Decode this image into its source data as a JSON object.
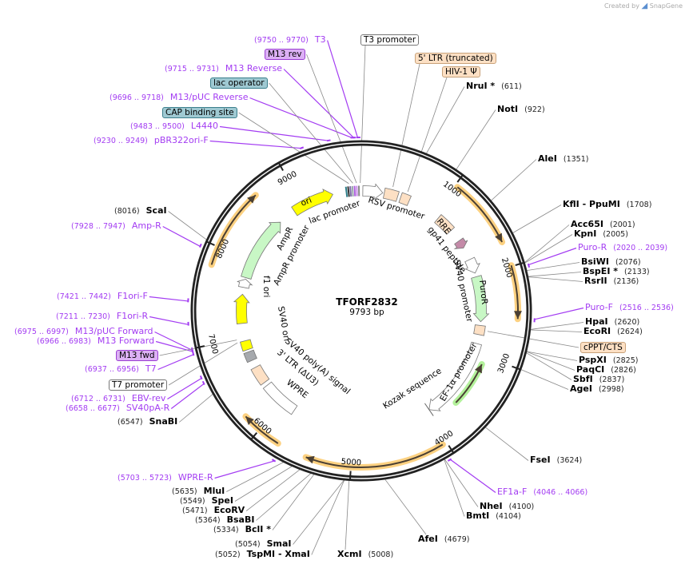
{
  "watermark": {
    "prefix": "Created by",
    "brand": "SnapGene"
  },
  "plasmid": {
    "name": "TFORF2832",
    "size_label": "9793 bp",
    "length": 9793
  },
  "ticks": [
    "1000",
    "2000",
    "3000",
    "4000",
    "5000",
    "6000",
    "7000",
    "8000",
    "9000"
  ],
  "sites": [
    {
      "name": "NruI *",
      "pos": 611
    },
    {
      "name": "NotI",
      "pos": 922
    },
    {
      "name": "AleI",
      "pos": 1351
    },
    {
      "name": "KflI  - PpuMI",
      "pos": 1708
    },
    {
      "name": "Acc65I",
      "pos": 2001
    },
    {
      "name": "KpnI",
      "pos": 2005
    },
    {
      "name": "BsiWI",
      "pos": 2076
    },
    {
      "name": "BspEI *",
      "pos": 2133
    },
    {
      "name": "RsrII",
      "pos": 2136
    },
    {
      "name": "HpaI",
      "pos": 2620
    },
    {
      "name": "EcoRI",
      "pos": 2624
    },
    {
      "name": "PspXI",
      "pos": 2825
    },
    {
      "name": "PaqCI",
      "pos": 2826
    },
    {
      "name": "SbfI",
      "pos": 2837
    },
    {
      "name": "AgeI",
      "pos": 2998
    },
    {
      "name": "FseI",
      "pos": 3624
    },
    {
      "name": "NheI",
      "pos": 4100
    },
    {
      "name": "BmtI",
      "pos": 4104
    },
    {
      "name": "AfeI",
      "pos": 4679
    },
    {
      "name": "XcmI",
      "pos": 5008
    },
    {
      "name": "SmaI",
      "pos": 5054
    },
    {
      "name": "TspMI  - XmaI",
      "pos": 5052
    },
    {
      "name": "BclI *",
      "pos": 5334
    },
    {
      "name": "BsaBI",
      "pos": 5364
    },
    {
      "name": "EcoRV",
      "pos": 5471
    },
    {
      "name": "SpeI",
      "pos": 5549
    },
    {
      "name": "MluI",
      "pos": 5635
    },
    {
      "name": "SnaBI",
      "pos": 6547
    },
    {
      "name": "ScaI",
      "pos": 8016
    }
  ],
  "primers": [
    {
      "name": "Puro-R",
      "range": "2020 .. 2039"
    },
    {
      "name": "Puro-F",
      "range": "2516 .. 2536"
    },
    {
      "name": "EF1a-F",
      "range": "4046 .. 4066"
    },
    {
      "name": "WPRE-R",
      "range": "5703 .. 5723"
    },
    {
      "name": "SV40pA-R",
      "range": "6658 .. 6677"
    },
    {
      "name": "EBV-rev",
      "range": "6712 .. 6731"
    },
    {
      "name": "T7",
      "range": "6937 .. 6956"
    },
    {
      "name": "M13 Forward",
      "range": "6966 .. 6983"
    },
    {
      "name": "M13/pUC Forward",
      "range": "6975 .. 6997"
    },
    {
      "name": "F1ori-R",
      "range": "7211 .. 7230"
    },
    {
      "name": "F1ori-F",
      "range": "7421 .. 7442"
    },
    {
      "name": "Amp-R",
      "range": "7928 .. 7947"
    },
    {
      "name": "pBR322ori-F",
      "range": "9230 .. 9249"
    },
    {
      "name": "L4440",
      "range": "9483 .. 9500"
    },
    {
      "name": "M13/pUC Reverse",
      "range": "9696 .. 9718"
    },
    {
      "name": "M13 Reverse",
      "range": "9715 .. 9731"
    },
    {
      "name": "T3",
      "range": "9750 .. 9770"
    }
  ],
  "boxed_features": [
    {
      "label": "T3 promoter",
      "bp": 9780
    },
    {
      "label": "M13 rev",
      "bp": 9735
    },
    {
      "label": "lac operator",
      "bp": 9690
    },
    {
      "label": "CAP binding site",
      "bp": 9640
    },
    {
      "label": "5' LTR (truncated)",
      "bp": 390
    },
    {
      "label": "HIV-1 Ψ",
      "bp": 580
    },
    {
      "label": "cPPT/CTS",
      "bp": 2700
    },
    {
      "label": "M13 fwd",
      "bp": 6985
    },
    {
      "label": "T7 promoter",
      "bp": 6950
    }
  ],
  "features": [
    {
      "label": "RSV promoter",
      "start": 20,
      "end": 280,
      "fill": "#ffffff",
      "dir": 1
    },
    {
      "label": "",
      "start": 300,
      "end": 480,
      "fill": "#fde0c4",
      "dir": 0
    },
    {
      "label": "",
      "start": 520,
      "end": 640,
      "fill": "#fde0c4",
      "dir": 0
    },
    {
      "label": "RRE",
      "start": 1080,
      "end": 1310,
      "fill": "#fde0c4",
      "dir": 0
    },
    {
      "label": "gp41 peptide",
      "start": 1480,
      "end": 1590,
      "fill": "#c48aa8",
      "dir": 1
    },
    {
      "label": "SV40 promoter",
      "start": 1760,
      "end": 1950,
      "fill": "#ffffff",
      "dir": 1
    },
    {
      "label": "PuroR",
      "start": 2000,
      "end": 2590,
      "fill": "#c8f7c5",
      "dir": 1
    },
    {
      "label": "",
      "start": 2640,
      "end": 2760,
      "fill": "#fde0c4",
      "dir": 0
    },
    {
      "label": "EF-1α promoter",
      "start": 2880,
      "end": 3960,
      "fill": "#ffffff",
      "dir": 1
    },
    {
      "label": "Kozak sequence",
      "start": 3960,
      "end": 3975,
      "fill": "#ffffff",
      "dir": 0
    },
    {
      "label": "WPRE",
      "start": 5820,
      "end": 6300,
      "fill": "#ffffff",
      "dir": 0
    },
    {
      "label": "3' LTR (ΔU3)",
      "start": 6350,
      "end": 6580,
      "fill": "#fde0c4",
      "dir": 0
    },
    {
      "label": "SV40 poly(A) signal",
      "start": 6680,
      "end": 6800,
      "fill": "#a6a9ad",
      "dir": 0
    },
    {
      "label": "SV40 ori",
      "start": 6830,
      "end": 6950,
      "fill": "#ffff00",
      "dir": 0
    },
    {
      "label": "f1 ori",
      "start": 7180,
      "end": 7560,
      "fill": "#ffff00",
      "dir": 1
    },
    {
      "label": "AmpR promoter",
      "start": 7650,
      "end": 7760,
      "fill": "#ffffff",
      "dir": 1
    },
    {
      "label": "AmpR",
      "start": 7780,
      "end": 8640,
      "fill": "#c8f7c5",
      "dir": 1
    },
    {
      "label": "ori",
      "start": 8870,
      "end": 9420,
      "fill": "#ffff00",
      "dir": 1
    },
    {
      "label": "lac promoter",
      "start": 9600,
      "end": 9790,
      "fill": "#2f7f8a",
      "dir": 0
    }
  ],
  "orfs": [
    {
      "start": 1030,
      "end": 1740,
      "dir": 1,
      "color": "#fcc96b"
    },
    {
      "start": 1990,
      "end": 2530,
      "dir": 1,
      "color": "#fcc96b"
    },
    {
      "start": 3100,
      "end": 3650,
      "dir": -1,
      "color": "#a6ee8a"
    },
    {
      "start": 4045,
      "end": 5460,
      "dir": 1,
      "color": "#fcc96b"
    },
    {
      "start": 5770,
      "end": 6190,
      "dir": 1,
      "color": "#fcc96b"
    },
    {
      "start": 7810,
      "end": 8640,
      "dir": 1,
      "color": "#fcc96b"
    }
  ]
}
